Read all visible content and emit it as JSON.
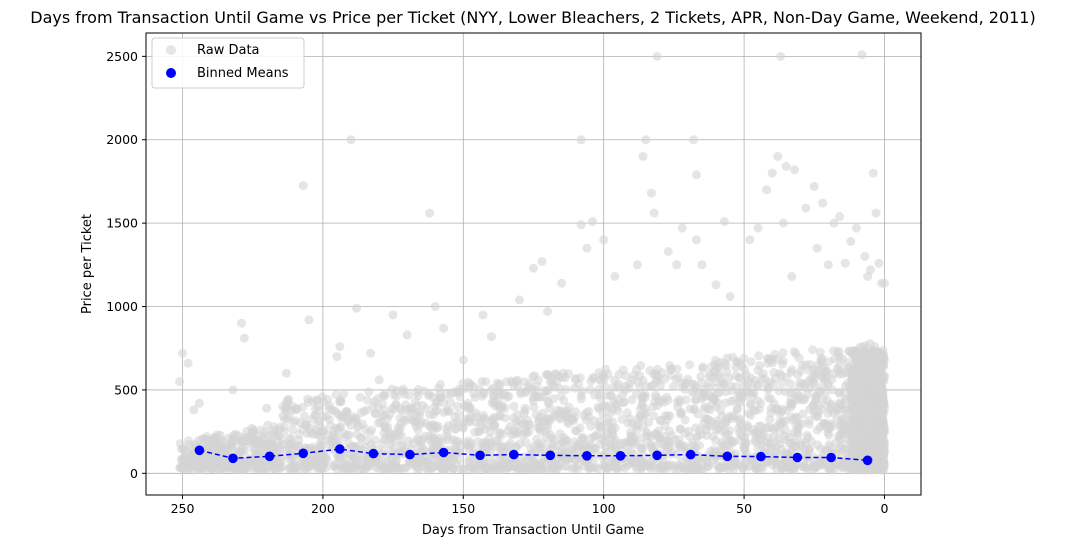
{
  "chart_data": {
    "type": "scatter",
    "title": "Days from Transaction Until Game vs Price per Ticket (NYY, Lower Bleachers, 2 Tickets, APR, Non-Day Game, Weekend, 2011)",
    "xlabel": "Days from Transaction Until Game",
    "ylabel": "Price per Ticket",
    "xlim": [
      263,
      -13
    ],
    "ylim": [
      -130,
      2640
    ],
    "x_inverted": true,
    "x_ticks": [
      250,
      200,
      150,
      100,
      50,
      0
    ],
    "y_ticks": [
      0,
      500,
      1000,
      1500,
      2000,
      2500
    ],
    "grid": true,
    "legend_position": "top-left",
    "series": [
      {
        "name": "Raw Data",
        "kind": "scatter",
        "color": "#d3d3d3",
        "note_points": "dense cloud of individual sales; representative outliers listed",
        "x": [
          251,
          250,
          248,
          246,
          244,
          232,
          229,
          228,
          220,
          213,
          207,
          205,
          195,
          194,
          190,
          188,
          183,
          180,
          175,
          170,
          162,
          160,
          157,
          150,
          143,
          140,
          130,
          125,
          122,
          120,
          115,
          108,
          108,
          106,
          104,
          100,
          96,
          88,
          86,
          85,
          83,
          82,
          81,
          77,
          74,
          72,
          68,
          67,
          67,
          65,
          60,
          57,
          55,
          48,
          45,
          42,
          40,
          38,
          37,
          36,
          35,
          33,
          32,
          28,
          25,
          24,
          22,
          20,
          18,
          16,
          14,
          12,
          10,
          8,
          7,
          6,
          5,
          4,
          3,
          2,
          1,
          0
        ],
        "y": [
          550,
          720,
          660,
          380,
          420,
          500,
          900,
          810,
          390,
          600,
          1725,
          920,
          700,
          760,
          2000,
          990,
          720,
          560,
          950,
          830,
          1560,
          1000,
          870,
          680,
          950,
          820,
          1040,
          1230,
          1270,
          970,
          1140,
          1490,
          2000,
          1350,
          1510,
          1400,
          1180,
          1250,
          1900,
          2000,
          1680,
          1560,
          2500,
          1330,
          1250,
          1470,
          2000,
          1790,
          1400,
          1250,
          1130,
          1510,
          1060,
          1400,
          1470,
          1700,
          1800,
          1900,
          2500,
          1500,
          1840,
          1180,
          1820,
          1590,
          1720,
          1350,
          1620,
          1250,
          1500,
          1540,
          1260,
          1390,
          1470,
          2510,
          1300,
          1180,
          1220,
          1800,
          1560,
          1260,
          1140,
          1140
        ]
      },
      {
        "name": "Binned Means",
        "kind": "line-markers",
        "color": "#0000ff",
        "line_style": "dashed",
        "x": [
          244,
          232,
          219,
          207,
          194,
          182,
          169,
          157,
          144,
          132,
          119,
          106,
          94,
          81,
          69,
          56,
          44,
          31,
          19,
          6
        ],
        "y": [
          138,
          90,
          102,
          120,
          145,
          118,
          112,
          125,
          108,
          112,
          108,
          105,
          105,
          108,
          112,
          102,
          100,
          95,
          95,
          78
        ]
      }
    ]
  }
}
